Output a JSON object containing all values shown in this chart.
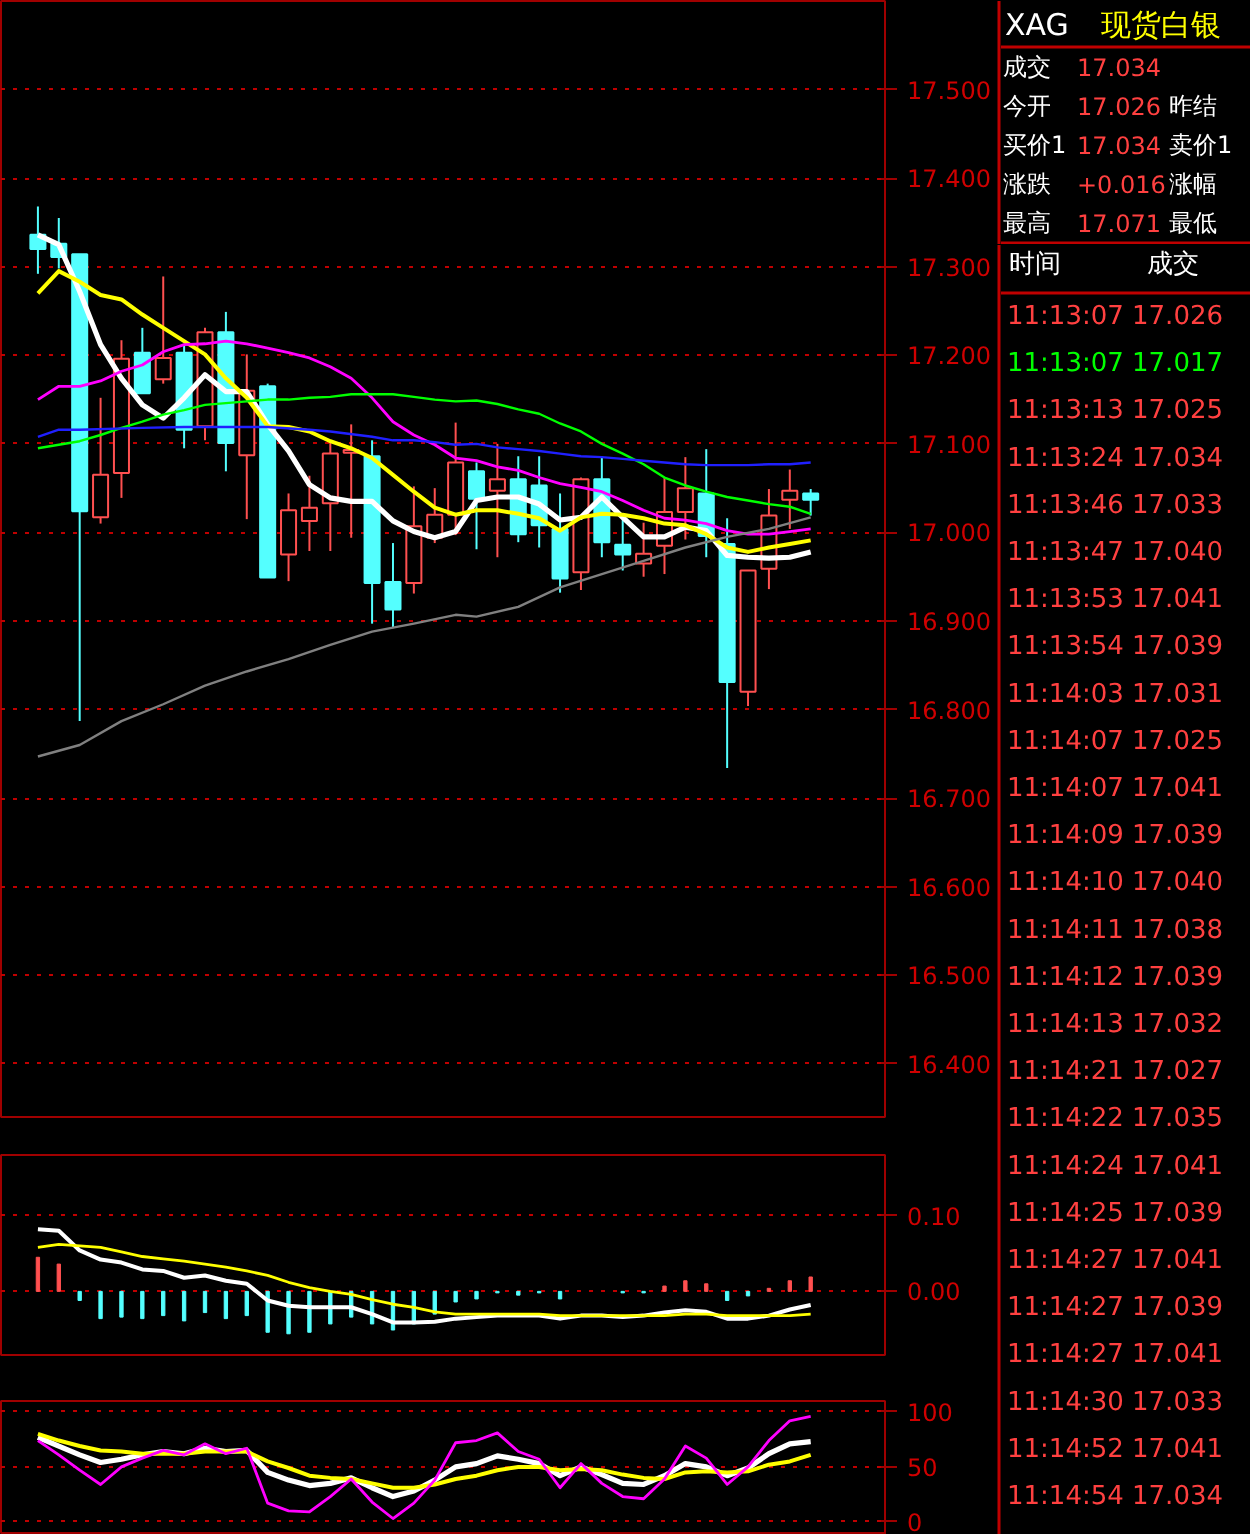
{
  "chart_data": [
    {
      "type": "candlestick",
      "categories": [
        null,
        null,
        null,
        null,
        null,
        null,
        null,
        null,
        null,
        null,
        null,
        null,
        null,
        null,
        null,
        null,
        null,
        null,
        null,
        null,
        null,
        null,
        null,
        null,
        null,
        null,
        null,
        null,
        null,
        null,
        null,
        null,
        null,
        null,
        null,
        null,
        null,
        null
      ],
      "ohlc": [
        [
          17.336,
          17.368,
          17.292,
          17.32
        ],
        [
          17.326,
          17.355,
          17.298,
          17.311
        ],
        [
          17.314,
          17.314,
          16.787,
          17.024
        ],
        [
          17.017,
          17.152,
          17.01,
          17.065
        ],
        [
          17.067,
          17.217,
          17.039,
          17.196
        ],
        [
          17.203,
          17.231,
          17.157,
          17.157
        ],
        [
          17.173,
          17.289,
          17.168,
          17.197
        ],
        [
          17.203,
          17.212,
          17.095,
          17.116
        ],
        [
          17.12,
          17.231,
          17.104,
          17.226
        ],
        [
          17.226,
          17.249,
          17.069,
          17.101
        ],
        [
          17.087,
          17.201,
          17.015,
          17.16
        ],
        [
          17.165,
          17.168,
          16.949,
          16.949
        ],
        [
          16.975,
          17.044,
          16.945,
          17.025
        ],
        [
          17.013,
          17.064,
          16.979,
          17.028
        ],
        [
          17.033,
          17.102,
          16.979,
          17.089
        ],
        [
          17.09,
          17.122,
          16.994,
          17.093
        ],
        [
          17.086,
          17.104,
          16.897,
          16.943
        ],
        [
          16.944,
          16.988,
          16.892,
          16.913
        ],
        [
          16.943,
          17.052,
          16.931,
          17.007
        ],
        [
          16.994,
          17.05,
          16.988,
          17.02
        ],
        [
          17.02,
          17.124,
          16.997,
          17.079
        ],
        [
          17.069,
          17.079,
          16.981,
          17.038
        ],
        [
          17.047,
          17.1,
          16.972,
          17.06
        ],
        [
          17.06,
          17.086,
          16.989,
          16.998
        ],
        [
          17.053,
          17.086,
          16.983,
          17.008
        ],
        [
          17.004,
          17.044,
          16.932,
          16.948
        ],
        [
          16.955,
          17.062,
          16.935,
          17.06
        ],
        [
          17.06,
          17.086,
          16.972,
          16.989
        ],
        [
          16.986,
          17.018,
          16.957,
          16.975
        ],
        [
          16.965,
          17.011,
          16.95,
          16.976
        ],
        [
          16.985,
          17.062,
          16.953,
          17.023
        ],
        [
          17.023,
          17.085,
          16.992,
          17.05
        ],
        [
          17.044,
          17.094,
          16.972,
          16.996
        ],
        [
          16.987,
          17.016,
          16.734,
          16.831
        ],
        [
          16.82,
          16.957,
          16.804,
          16.957
        ],
        [
          16.959,
          17.049,
          16.936,
          17.019
        ],
        [
          17.037,
          17.071,
          17.004,
          17.047
        ],
        [
          17.044,
          17.049,
          17.019,
          17.037
        ]
      ],
      "colors": [
        "#54ffff",
        "#54ffff",
        "#54ffff",
        "#ff5050",
        "#ff5050",
        "#54ffff",
        "#ff5050",
        "#54ffff",
        "#ff5050",
        "#54ffff",
        "#ff5050",
        "#54ffff",
        "#ff5050",
        "#ff5050",
        "#ff5050",
        "#ff5050",
        "#54ffff",
        "#54ffff",
        "#ff5050",
        "#ff5050",
        "#ff5050",
        "#54ffff",
        "#ff5050",
        "#54ffff",
        "#54ffff",
        "#54ffff",
        "#ff5050",
        "#54ffff",
        "#54ffff",
        "#ff5050",
        "#ff5050",
        "#ff5050",
        "#54ffff",
        "#54ffff",
        "#ff5050",
        "#ff5050",
        "#ff5050",
        "#54ffff"
      ],
      "series": [
        {
          "type": "line",
          "color": "#ffffff",
          "values": [
            17.336,
            17.325,
            17.272,
            17.212,
            17.174,
            17.144,
            17.129,
            17.152,
            17.178,
            17.159,
            17.159,
            17.122,
            17.092,
            17.054,
            17.039,
            17.035,
            17.035,
            17.013,
            17.001,
            16.994,
            17.001,
            17.036,
            17.04,
            17.04,
            17.032,
            17.014,
            17.017,
            17.04,
            17.017,
            16.995,
            16.995,
            17.006,
            17.002,
            16.974,
            16.972,
            16.971,
            16.972,
            16.978
          ]
        },
        {
          "type": "line",
          "color": "#ffff00",
          "values": [
            17.27,
            17.295,
            17.283,
            17.268,
            17.263,
            17.246,
            17.231,
            17.216,
            17.201,
            17.174,
            17.152,
            17.12,
            17.119,
            17.114,
            17.103,
            17.095,
            17.084,
            17.065,
            17.046,
            17.028,
            17.02,
            17.025,
            17.025,
            17.021,
            17.016,
            17.002,
            17.017,
            17.021,
            17.02,
            17.016,
            17.01,
            17.008,
            16.998,
            16.983,
            16.978,
            16.983,
            16.987,
            16.991
          ]
        },
        {
          "type": "line",
          "color": "#ff00ff",
          "values": [
            17.15,
            17.165,
            17.165,
            17.171,
            17.182,
            17.189,
            17.204,
            17.212,
            17.213,
            17.216,
            17.213,
            17.208,
            17.203,
            17.197,
            17.187,
            17.174,
            17.152,
            17.125,
            17.11,
            17.099,
            17.084,
            17.081,
            17.074,
            17.07,
            17.062,
            17.055,
            17.051,
            17.046,
            17.036,
            17.025,
            17.016,
            17.014,
            17.01,
            17.002,
            16.998,
            16.998,
            17.001,
            17.004
          ]
        },
        {
          "type": "line",
          "color": "#00ff00",
          "values": [
            17.095,
            17.099,
            17.103,
            17.11,
            17.118,
            17.125,
            17.133,
            17.138,
            17.144,
            17.146,
            17.148,
            17.15,
            17.15,
            17.152,
            17.153,
            17.156,
            17.156,
            17.156,
            17.153,
            17.15,
            17.148,
            17.149,
            17.145,
            17.139,
            17.134,
            17.123,
            17.114,
            17.1,
            17.089,
            17.077,
            17.062,
            17.053,
            17.046,
            17.04,
            17.036,
            17.032,
            17.029,
            17.021
          ]
        },
        {
          "type": "line",
          "color": "#2020ff",
          "values": [
            17.108,
            17.116,
            17.116,
            null,
            null,
            17.118,
            null,
            17.119,
            null,
            null,
            17.119,
            17.119,
            null,
            17.116,
            17.114,
            null,
            17.108,
            17.104,
            17.104,
            17.102,
            17.099,
            17.1,
            17.096,
            17.094,
            17.092,
            17.089,
            17.086,
            17.085,
            17.083,
            17.081,
            17.079,
            17.077,
            17.076,
            17.076,
            17.076,
            17.077,
            17.077,
            17.079
          ]
        },
        {
          "type": "line",
          "color": "#808080",
          "values": [
            16.747,
            null,
            16.76,
            null,
            16.787,
            null,
            16.806,
            null,
            16.827,
            null,
            16.843,
            null,
            16.857,
            null,
            16.873,
            null,
            16.888,
            null,
            16.897,
            null,
            16.907,
            16.905,
            null,
            16.916,
            null,
            16.938,
            null,
            16.953,
            null,
            16.968,
            null,
            16.983,
            null,
            16.995,
            null,
            17.004,
            null,
            17.017
          ]
        }
      ],
      "ylim": [
        16.34,
        17.6
      ],
      "yticks": [
        {
          "value": 16.4,
          "label": "16.400"
        },
        {
          "value": 16.5,
          "label": "16.500"
        },
        {
          "value": 16.6,
          "label": "16.600"
        },
        {
          "value": 16.7,
          "label": "16.700"
        },
        {
          "value": 16.8,
          "label": "16.800"
        },
        {
          "value": 16.9,
          "label": "16.900"
        },
        {
          "value": 17.0,
          "label": "17.000"
        },
        {
          "value": 17.1,
          "label": "17.100"
        },
        {
          "value": 17.2,
          "label": "17.200"
        },
        {
          "value": 17.3,
          "label": "17.300"
        },
        {
          "value": 17.4,
          "label": "17.400"
        },
        {
          "value": 17.5,
          "label": "17.500"
        }
      ],
      "grid": "y",
      "tick_labels": "y"
    },
    {
      "type": "bar",
      "categories": [
        null,
        null,
        null,
        null,
        null,
        null,
        null,
        null,
        null,
        null,
        null,
        null,
        null,
        null,
        null,
        null,
        null,
        null,
        null,
        null,
        null,
        null,
        null,
        null,
        null,
        null,
        null,
        null,
        null,
        null,
        null,
        null,
        null,
        null,
        null,
        null,
        null,
        null
      ],
      "series": [
        {
          "type": "bar",
          "colors": [
            "#ff5050",
            "#ff5050",
            "#54ffff",
            "#54ffff",
            "#54ffff",
            "#54ffff",
            "#54ffff",
            "#54ffff",
            "#54ffff",
            "#54ffff",
            "#54ffff",
            "#54ffff",
            "#54ffff",
            "#54ffff",
            "#54ffff",
            "#54ffff",
            "#54ffff",
            "#54ffff",
            "#54ffff",
            "#54ffff",
            "#54ffff",
            "#54ffff",
            "#54ffff",
            "#54ffff",
            "#54ffff",
            "#54ffff",
            "#54ffff",
            "#54ffff",
            "#54ffff",
            "#54ffff",
            "#ff5050",
            "#ff5050",
            "#ff5050",
            "#54ffff",
            "#54ffff",
            "#ff5050",
            "#ff5050",
            "#ff5050"
          ],
          "values": [
            0.045,
            0.036,
            -0.012,
            -0.036,
            -0.034,
            -0.036,
            -0.032,
            -0.039,
            -0.028,
            -0.036,
            -0.032,
            -0.054,
            -0.056,
            -0.054,
            -0.043,
            -0.034,
            -0.043,
            -0.051,
            -0.043,
            -0.03,
            -0.014,
            -0.01,
            -0.002,
            -0.005,
            -0.002,
            -0.01,
            null,
            null,
            -0.002,
            -0.002,
            0.007,
            0.014,
            0.01,
            -0.012,
            -0.006,
            0.004,
            0.014,
            0.019
          ]
        },
        {
          "type": "line",
          "color": "#ffffff",
          "values": [
            0.082,
            0.08,
            0.054,
            0.042,
            0.038,
            0.029,
            0.027,
            0.018,
            0.021,
            0.014,
            0.01,
            -0.012,
            -0.019,
            -0.021,
            -0.021,
            -0.021,
            -0.03,
            -0.041,
            -0.041,
            -0.04,
            -0.036,
            -0.034,
            -0.032,
            -0.032,
            -0.032,
            -0.036,
            -0.032,
            -0.032,
            -0.034,
            -0.032,
            -0.028,
            -0.025,
            -0.027,
            -0.036,
            -0.036,
            -0.032,
            -0.024,
            -0.018
          ]
        },
        {
          "type": "line",
          "color": "#ffff00",
          "values": [
            0.058,
            0.062,
            0.06,
            0.058,
            0.052,
            0.046,
            0.043,
            0.04,
            0.036,
            0.032,
            0.027,
            0.021,
            0.012,
            0.005,
            0.0,
            -0.004,
            -0.011,
            -0.017,
            -0.021,
            -0.027,
            -0.03,
            -0.03,
            -0.03,
            -0.03,
            -0.03,
            -0.032,
            -0.032,
            -0.032,
            -0.032,
            -0.032,
            -0.032,
            -0.03,
            -0.03,
            -0.032,
            -0.032,
            -0.032,
            -0.032,
            -0.03
          ]
        }
      ],
      "ylim": [
        -0.084,
        0.18
      ],
      "yticks": [
        {
          "value": 0,
          "label": "0.00"
        },
        {
          "value": 0.1,
          "label": "0.10"
        }
      ],
      "grid": "y",
      "tick_labels": "y"
    },
    {
      "type": "line",
      "categories": [
        null,
        null,
        null,
        null,
        null,
        null,
        null,
        null,
        null,
        null,
        null,
        null,
        null,
        null,
        null,
        null,
        null,
        null,
        null,
        null,
        null,
        null,
        null,
        null,
        null,
        null,
        null,
        null,
        null,
        null,
        null,
        null,
        null,
        null,
        null,
        null,
        null,
        null
      ],
      "series": [
        {
          "type": "line",
          "color": "#ffffff",
          "values": [
            77,
            69,
            61,
            54,
            57,
            61,
            64,
            62,
            67,
            64,
            65,
            45,
            38,
            33,
            35,
            40,
            31,
            23,
            28,
            38,
            50,
            53,
            60,
            57,
            53,
            42,
            50,
            43,
            35,
            34,
            42,
            53,
            50,
            42,
            49,
            62,
            71,
            73
          ]
        },
        {
          "type": "line",
          "color": "#ffff00",
          "values": [
            80,
            74,
            69,
            65,
            64,
            62,
            62,
            62,
            64,
            64,
            64,
            55,
            49,
            42,
            40,
            39,
            35,
            31,
            31,
            34,
            39,
            42,
            47,
            50,
            50,
            47,
            48,
            47,
            43,
            40,
            39,
            45,
            46,
            45,
            46,
            52,
            55,
            61
          ]
        },
        {
          "type": "line",
          "color": "#ff00ff",
          "values": [
            74,
            61,
            47,
            34,
            50,
            58,
            65,
            61,
            71,
            62,
            67,
            17,
            10,
            9,
            23,
            39,
            18,
            3,
            17,
            38,
            72,
            74,
            81,
            64,
            57,
            31,
            53,
            35,
            23,
            21,
            39,
            69,
            58,
            34,
            50,
            74,
            92,
            96
          ]
        }
      ],
      "ylim": [
        -12,
        110
      ],
      "yticks": [
        0,
        50,
        100
      ],
      "grid": "y",
      "tick_labels": "y"
    },
    {
      "type": "other",
      "title": "XAG 现货白银",
      "annotations": [
        "成交",
        "17.034",
        "今开",
        "17.026",
        "昨结",
        "买价1",
        "17.034",
        "卖价1",
        "涨跌",
        "+0.016",
        "涨幅",
        "最高",
        "17.071",
        "最低"
      ]
    },
    {
      "type": "other",
      "xlabel": "时间",
      "ylabel": "成交",
      "annotations": [
        "11:13:07 17.026",
        "11:13:07 17.017",
        "11:13:13 17.025",
        "11:13:24 17.034",
        "11:13:46 17.033",
        "11:13:47 17.040",
        "11:13:53 17.041",
        "11:13:54 17.039",
        "11:14:03 17.031",
        "11:14:07 17.025",
        "11:14:07 17.041",
        "11:14:09 17.039",
        "11:14:10 17.040",
        "11:14:11 17.038",
        "11:14:12 17.039",
        "11:14:13 17.032",
        "11:14:21 17.027",
        "11:14:22 17.035",
        "11:14:24 17.041",
        "11:14:25 17.039",
        "11:14:27 17.041",
        "11:14:27 17.039",
        "11:14:27 17.041",
        "11:14:30 17.033",
        "11:14:52 17.041",
        "11:14:54 17.034"
      ],
      "colors": [
        "#ff4040",
        "#00ff00",
        "#ff4040",
        "#ff4040",
        "#ff4040",
        "#ff4040",
        "#ff4040",
        "#ff4040",
        "#ff4040",
        "#ff4040",
        "#ff4040",
        "#ff4040",
        "#ff4040",
        "#ff4040",
        "#ff4040",
        "#ff4040",
        "#ff4040",
        "#ff4040",
        "#ff4040",
        "#ff4040",
        "#ff4040",
        "#ff4040",
        "#ff4040",
        "#ff4040",
        "#ff4040",
        "#ff4040"
      ]
    }
  ]
}
